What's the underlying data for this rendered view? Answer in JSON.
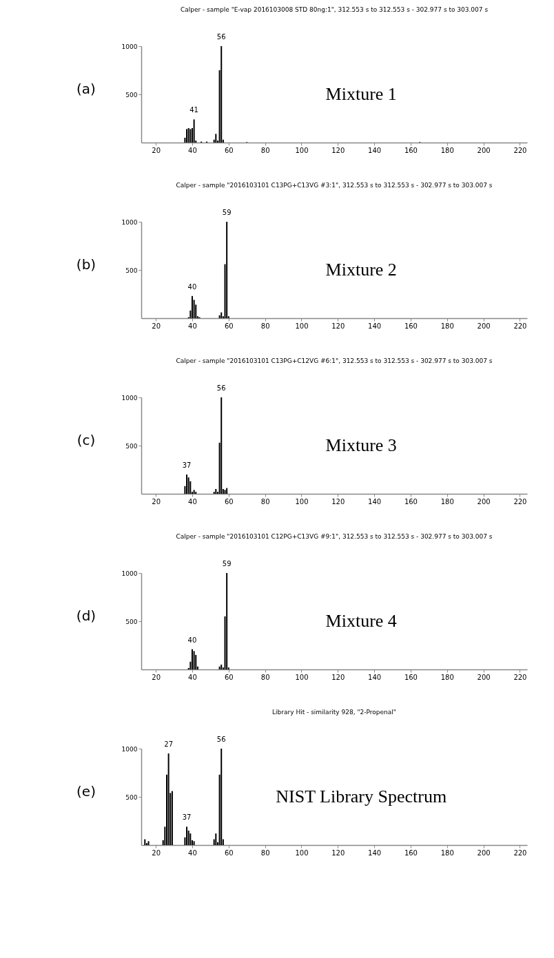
{
  "chart_data": [
    {
      "type": "bar",
      "title": "Calper - sample \"E-vap 2016103008 STD 80ng:1\", 312.553 s to 312.553 s - 302.977 s to 303.007 s",
      "color": "#000000",
      "x": [
        36,
        37,
        38,
        39,
        40,
        41,
        42,
        45,
        48,
        52,
        53,
        54,
        55,
        56,
        57,
        70,
        165
      ],
      "values": [
        50,
        140,
        150,
        140,
        150,
        240,
        20,
        10,
        10,
        30,
        90,
        20,
        750,
        1000,
        30,
        5,
        5
      ],
      "xlim": [
        12,
        224
      ],
      "xticks": [
        20,
        40,
        60,
        80,
        100,
        120,
        140,
        160,
        180,
        200,
        220
      ],
      "ylim": [
        0,
        1000
      ],
      "yticks": [
        500,
        1000
      ],
      "grid": false,
      "annotations": [
        "(a)",
        "Mixture 1",
        {
          "text": "41",
          "x": 41,
          "y": 240
        },
        {
          "text": "56",
          "x": 56,
          "y": 1000
        }
      ]
    },
    {
      "type": "bar",
      "title": "Calper - sample \"2016103101 C13PG+C13VG #3:1\", 312.553 s to 312.553 s - 302.977 s to 303.007 s",
      "color": "#000000",
      "x": [
        38,
        39,
        40,
        41,
        42,
        43,
        44,
        55,
        56,
        57,
        58,
        59,
        60
      ],
      "values": [
        10,
        80,
        230,
        190,
        140,
        20,
        10,
        30,
        60,
        20,
        560,
        1000,
        20
      ],
      "xlim": [
        12,
        224
      ],
      "xticks": [
        20,
        40,
        60,
        80,
        100,
        120,
        140,
        160,
        180,
        200,
        220
      ],
      "ylim": [
        0,
        1000
      ],
      "yticks": [
        500,
        1000
      ],
      "grid": false,
      "annotations": [
        "(b)",
        "Mixture 2",
        {
          "text": "40",
          "x": 40,
          "y": 230
        },
        {
          "text": "59",
          "x": 59,
          "y": 1000
        }
      ]
    },
    {
      "type": "bar",
      "title": "Calper - sample \"2016103101 C13PG+C12VG #6:1\", 312.553 s to 312.553 s - 302.977 s to 303.007 s",
      "color": "#000000",
      "x": [
        36,
        37,
        38,
        39,
        40,
        41,
        42,
        52,
        53,
        54,
        55,
        56,
        57,
        58,
        59
      ],
      "values": [
        80,
        200,
        170,
        130,
        20,
        40,
        20,
        20,
        50,
        20,
        530,
        1000,
        50,
        40,
        60
      ],
      "xlim": [
        12,
        224
      ],
      "xticks": [
        20,
        40,
        60,
        80,
        100,
        120,
        140,
        160,
        180,
        200,
        220
      ],
      "ylim": [
        0,
        1000
      ],
      "yticks": [
        500,
        1000
      ],
      "grid": false,
      "annotations": [
        "(c)",
        "Mixture 3",
        {
          "text": "37",
          "x": 37,
          "y": 200
        },
        {
          "text": "56",
          "x": 56,
          "y": 1000
        }
      ]
    },
    {
      "type": "bar",
      "title": "Calper - sample \"2016103101 C12PG+C13VG #9:1\", 312.553 s to 312.553 s - 302.977 s to 303.007 s",
      "color": "#000000",
      "x": [
        38,
        39,
        40,
        41,
        42,
        43,
        55,
        56,
        57,
        58,
        59,
        60
      ],
      "values": [
        15,
        80,
        210,
        190,
        150,
        30,
        30,
        50,
        20,
        550,
        1000,
        20
      ],
      "xlim": [
        12,
        224
      ],
      "xticks": [
        20,
        40,
        60,
        80,
        100,
        120,
        140,
        160,
        180,
        200,
        220
      ],
      "ylim": [
        0,
        1000
      ],
      "yticks": [
        500,
        1000
      ],
      "grid": false,
      "annotations": [
        "(d)",
        "Mixture 4",
        {
          "text": "40",
          "x": 40,
          "y": 210
        },
        {
          "text": "59",
          "x": 59,
          "y": 1000
        }
      ]
    },
    {
      "type": "bar",
      "title": "Library Hit - similarity 928, \"2-Propenal\"",
      "color": "#000000",
      "x": [
        14,
        15,
        16,
        24,
        25,
        26,
        27,
        28,
        29,
        36,
        37,
        38,
        39,
        40,
        41,
        52,
        53,
        54,
        55,
        56,
        57
      ],
      "values": [
        60,
        20,
        40,
        50,
        190,
        730,
        950,
        540,
        560,
        80,
        190,
        150,
        120,
        50,
        40,
        60,
        120,
        30,
        730,
        1000,
        60
      ],
      "xlim": [
        12,
        224
      ],
      "xticks": [
        20,
        40,
        60,
        80,
        100,
        120,
        140,
        160,
        180,
        200,
        220
      ],
      "ylim": [
        0,
        1000
      ],
      "yticks": [
        500,
        1000
      ],
      "grid": false,
      "annotations": [
        "(e)",
        "NIST Library Spectrum",
        {
          "text": "27",
          "x": 27,
          "y": 950
        },
        {
          "text": "37",
          "x": 37,
          "y": 190
        },
        {
          "text": "56",
          "x": 56,
          "y": 1000
        }
      ]
    }
  ]
}
